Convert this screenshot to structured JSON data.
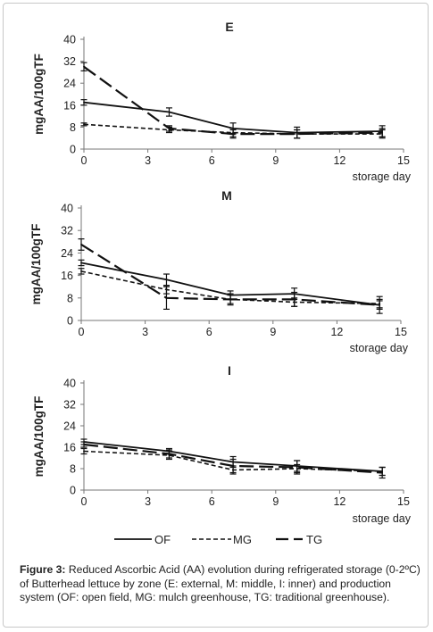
{
  "figure": {
    "caption_label": "Figure 3:",
    "caption_text": "Reduced Ascorbic Acid (AA) evolution during refrigerated storage (0-2ºC) of Butterhead lettuce by zone (E: external, M: middle, I: inner) and production system (OF: open field, MG: mulch greenhouse, TG: traditional greenhouse)."
  },
  "legend": {
    "items": [
      {
        "key": "OF",
        "label": "OF"
      },
      {
        "key": "MG",
        "label": "MG"
      },
      {
        "key": "TG",
        "label": "TG"
      }
    ]
  },
  "chart_data": [
    {
      "type": "line",
      "title": "E",
      "xlabel": "storage day",
      "ylabel": "mgAA/100gTF",
      "xlim": [
        0,
        15
      ],
      "ylim": [
        0,
        40
      ],
      "xticks": [
        0,
        3,
        6,
        9,
        12,
        15
      ],
      "yticks": [
        0,
        8,
        16,
        24,
        32,
        40
      ],
      "grid": false,
      "series": [
        {
          "name": "OF",
          "style": "solid",
          "x": [
            0,
            4,
            7,
            10,
            14
          ],
          "y": [
            17,
            13.5,
            7.5,
            6,
            6.5
          ],
          "err": [
            1,
            1.5,
            2,
            2,
            2
          ]
        },
        {
          "name": "MG",
          "style": "dashed",
          "x": [
            0,
            4,
            7,
            10,
            14
          ],
          "y": [
            9,
            7,
            6,
            5.5,
            5.5
          ],
          "err": [
            0.5,
            1,
            1.5,
            1.5,
            1.5
          ]
        },
        {
          "name": "TG",
          "style": "longdash",
          "x": [
            0,
            4,
            7,
            10,
            14
          ],
          "y": [
            30,
            7.5,
            5.5,
            5.5,
            6
          ],
          "err": [
            1.5,
            1,
            1.5,
            1.5,
            1.5
          ]
        }
      ]
    },
    {
      "type": "line",
      "title": "M",
      "xlabel": "storage day",
      "ylabel": "mgAA/100gTF",
      "xlim": [
        0,
        15
      ],
      "ylim": [
        0,
        40
      ],
      "xticks": [
        0,
        3,
        6,
        9,
        12,
        15
      ],
      "yticks": [
        0,
        8,
        16,
        24,
        32,
        40
      ],
      "grid": false,
      "series": [
        {
          "name": "OF",
          "style": "solid",
          "x": [
            0,
            4,
            7,
            10,
            14
          ],
          "y": [
            20.5,
            14.5,
            9,
            9.5,
            5.5
          ],
          "err": [
            1,
            2,
            1.5,
            2,
            1.5
          ]
        },
        {
          "name": "MG",
          "style": "dashed",
          "x": [
            0,
            4,
            7,
            10,
            14
          ],
          "y": [
            17.5,
            11,
            7.5,
            6.5,
            6
          ],
          "err": [
            1,
            1.5,
            1.5,
            1.5,
            1.5
          ]
        },
        {
          "name": "TG",
          "style": "longdash",
          "x": [
            0,
            4,
            7,
            10,
            14
          ],
          "y": [
            27,
            8,
            7.5,
            7.5,
            5.5
          ],
          "err": [
            2,
            4,
            2,
            2.5,
            3
          ]
        }
      ]
    },
    {
      "type": "line",
      "title": "I",
      "xlabel": "storage day",
      "ylabel": "mgAA/100gTF",
      "xlim": [
        0,
        15
      ],
      "ylim": [
        0,
        40
      ],
      "xticks": [
        0,
        3,
        6,
        9,
        12,
        15
      ],
      "yticks": [
        0,
        8,
        16,
        24,
        32,
        40
      ],
      "grid": false,
      "series": [
        {
          "name": "OF",
          "style": "solid",
          "x": [
            0,
            4,
            7,
            10,
            14
          ],
          "y": [
            18,
            14.5,
            10.5,
            9,
            7
          ],
          "err": [
            1,
            1,
            2,
            2,
            1.5
          ]
        },
        {
          "name": "MG",
          "style": "dashed",
          "x": [
            0,
            4,
            7,
            10,
            14
          ],
          "y": [
            14.5,
            13,
            7.5,
            8,
            7
          ],
          "err": [
            1,
            1.5,
            1.5,
            1.5,
            1.5
          ]
        },
        {
          "name": "TG",
          "style": "longdash",
          "x": [
            0,
            4,
            7,
            10,
            14
          ],
          "y": [
            17,
            13.5,
            9,
            8.5,
            6.5
          ],
          "err": [
            1,
            1.5,
            2.5,
            2.5,
            2
          ]
        }
      ]
    }
  ]
}
